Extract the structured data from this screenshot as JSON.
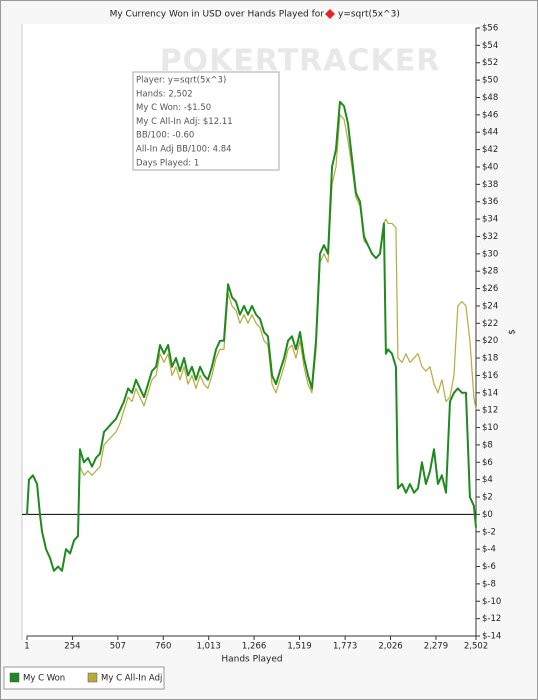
{
  "chart_data": {
    "type": "line",
    "title": "My Currency Won in USD over Hands Played for",
    "title_player": "y=sqrt(5x^3)",
    "watermark": "POKERTRACKER",
    "x_label": "Hands Played",
    "y_label": "$",
    "tooltip": [
      "Player: y=sqrt(5x^3)",
      "Hands: 2,502",
      "My C Won: -$1.50",
      "My C All-In Adj: $12.11",
      "BB/100: -0.60",
      "All-In Adj BB/100: 4.84",
      "Days Played: 1"
    ],
    "x": [
      1,
      12,
      34,
      57,
      73,
      85,
      107,
      129,
      151,
      174,
      196,
      218,
      241,
      263,
      285,
      296,
      318,
      341,
      363,
      385,
      408,
      430,
      452,
      474,
      497,
      519,
      541,
      564,
      586,
      608,
      630,
      653,
      675,
      697,
      720,
      742,
      764,
      787,
      809,
      831,
      853,
      876,
      898,
      920,
      942,
      965,
      987,
      1009,
      1031,
      1054,
      1076,
      1098,
      1121,
      1143,
      1165,
      1187,
      1210,
      1232,
      1254,
      1277,
      1299,
      1321,
      1343,
      1366,
      1388,
      1410,
      1433,
      1455,
      1477,
      1499,
      1522,
      1544,
      1566,
      1588,
      1611,
      1633,
      1655,
      1678,
      1700,
      1722,
      1744,
      1767,
      1789,
      1811,
      1833,
      1856,
      1878,
      1900,
      1923,
      1945,
      1967,
      1989,
      2000,
      2012,
      2034,
      2056,
      2067,
      2090,
      2112,
      2134,
      2157,
      2179,
      2201,
      2223,
      2246,
      2268,
      2290,
      2312,
      2335,
      2357,
      2379,
      2401,
      2424,
      2446,
      2468,
      2490,
      2502
    ],
    "series": [
      {
        "name": "My C Won",
        "color": "#1f8a1f",
        "width": 2,
        "values": [
          0,
          4,
          4.5,
          3.5,
          0,
          -2,
          -4,
          -5,
          -6.5,
          -6,
          -6.5,
          -4,
          -4.5,
          -3,
          -2.5,
          7.5,
          6,
          6.5,
          5.5,
          6.5,
          7,
          9.5,
          10,
          10.5,
          11,
          12,
          13,
          14.5,
          14,
          15.5,
          14.5,
          13.5,
          15,
          16.5,
          17,
          19.5,
          18.5,
          19.5,
          17,
          18,
          16.5,
          18,
          16,
          17,
          15.5,
          17,
          16,
          15.5,
          17,
          19,
          20,
          20,
          26.5,
          25,
          24.5,
          23,
          24,
          23,
          24,
          23,
          22.5,
          21,
          20.5,
          16,
          15,
          16.5,
          18,
          20,
          20.5,
          19,
          21,
          18,
          16,
          14.5,
          20,
          30,
          31,
          30,
          40,
          42,
          47.5,
          47,
          45,
          41,
          37,
          36,
          32,
          31,
          30,
          29.5,
          30,
          33.5,
          18.5,
          19,
          18.5,
          17,
          3,
          3.5,
          2.5,
          3.5,
          2.5,
          3,
          6,
          3.5,
          5,
          7.5,
          3.5,
          4.5,
          2.5,
          13,
          14,
          14.5,
          14,
          14,
          2,
          1,
          -1.5
        ]
      },
      {
        "name": "My C All-In Adj",
        "color": "#b8ab3c",
        "width": 1.2,
        "values": [
          0,
          4,
          4.5,
          3.5,
          0,
          -2,
          -4,
          -5,
          -6.5,
          -6,
          -6.5,
          -4,
          -4.5,
          -3,
          -2.5,
          5.5,
          4.5,
          5,
          4.5,
          5,
          5.5,
          8,
          8.5,
          9,
          9.5,
          10.5,
          12,
          13.5,
          13,
          14.5,
          13.5,
          12.5,
          14,
          15.5,
          16,
          18.5,
          17.5,
          18.5,
          16,
          17,
          15.5,
          17,
          15,
          16,
          14.5,
          16,
          15,
          14.5,
          16,
          18,
          19,
          19,
          25.5,
          24,
          23.5,
          22,
          23,
          22,
          23,
          22,
          21.5,
          20,
          19.5,
          15,
          14,
          15.5,
          17,
          19,
          19.5,
          18,
          20,
          17,
          15,
          14,
          19,
          29,
          30,
          29,
          38,
          40,
          46,
          45.5,
          43,
          40,
          36.5,
          35.5,
          31.5,
          31,
          30,
          29.5,
          30,
          33.5,
          34,
          33.5,
          33.5,
          33,
          18,
          17.5,
          18.5,
          17.5,
          18,
          18.5,
          17,
          16.5,
          17,
          15,
          14,
          15.5,
          13,
          13.5,
          16,
          24,
          24.5,
          24,
          20,
          13.5,
          12.11
        ]
      }
    ],
    "xlim": [
      1,
      2502
    ],
    "ylim": [
      -14,
      56
    ],
    "xticks": [
      1,
      254,
      507,
      760,
      {
        "value": 1013,
        "label": "1,013"
      },
      {
        "value": 1266,
        "label": "1,266"
      },
      {
        "value": 1519,
        "label": "1,519"
      },
      {
        "value": 1773,
        "label": "1,773"
      },
      {
        "value": 2026,
        "label": "2,026"
      },
      {
        "value": 2279,
        "label": "2,279"
      },
      {
        "value": 2502,
        "label": "2,502"
      }
    ],
    "yticks": [
      {
        "value": 56,
        "label": "$56"
      },
      {
        "value": 54,
        "label": "$54"
      },
      {
        "value": 52,
        "label": "$52"
      },
      {
        "value": 50,
        "label": "$50"
      },
      {
        "value": 48,
        "label": "$48"
      },
      {
        "value": 46,
        "label": "$46"
      },
      {
        "value": 44,
        "label": "$44"
      },
      {
        "value": 42,
        "label": "$42"
      },
      {
        "value": 40,
        "label": "$40"
      },
      {
        "value": 38,
        "label": "$38"
      },
      {
        "value": 36,
        "label": "$36"
      },
      {
        "value": 34,
        "label": "$34"
      },
      {
        "value": 32,
        "label": "$32"
      },
      {
        "value": 30,
        "label": "$30"
      },
      {
        "value": 28,
        "label": "$28"
      },
      {
        "value": 26,
        "label": "$26"
      },
      {
        "value": 24,
        "label": "$24"
      },
      {
        "value": 22,
        "label": "$22"
      },
      {
        "value": 20,
        "label": "$20"
      },
      {
        "value": 18,
        "label": "$18"
      },
      {
        "value": 16,
        "label": "$16"
      },
      {
        "value": 14,
        "label": "$14"
      },
      {
        "value": 12,
        "label": "$12"
      },
      {
        "value": 10,
        "label": "$10"
      },
      {
        "value": 8,
        "label": "$8"
      },
      {
        "value": 6,
        "label": "$6"
      },
      {
        "value": 4,
        "label": "$4"
      },
      {
        "value": 2,
        "label": "$2"
      },
      {
        "value": 0,
        "label": "$0"
      },
      {
        "value": -2,
        "label": "$-2"
      },
      {
        "value": -4,
        "label": "$-4"
      },
      {
        "value": -6,
        "label": "$-6"
      },
      {
        "value": -8,
        "label": "$-8"
      },
      {
        "value": -10,
        "label": "$-10"
      },
      {
        "value": -12,
        "label": "$-12"
      },
      {
        "value": -14,
        "label": "$-14"
      }
    ],
    "grid": false,
    "zero_line": true,
    "legend": "bottom-left"
  }
}
